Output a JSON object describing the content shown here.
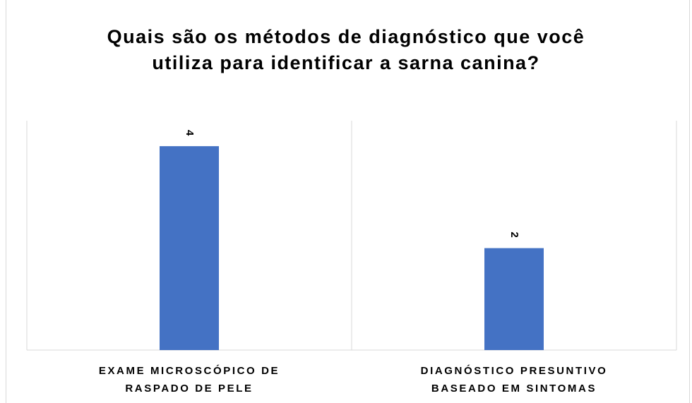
{
  "chart_data": {
    "type": "bar",
    "title": "Quais são os métodos de diagnóstico que você utiliza para identificar a sarna canina?",
    "categories": [
      "EXAME MICROSCÓPICO DE RASPADO DE PELE",
      "DIAGNÓSTICO PRESUNTIVO BASEADO EM SINTOMAS"
    ],
    "values": [
      4,
      2
    ],
    "color": "#4472c4",
    "ylim": [
      0,
      4.5
    ]
  }
}
